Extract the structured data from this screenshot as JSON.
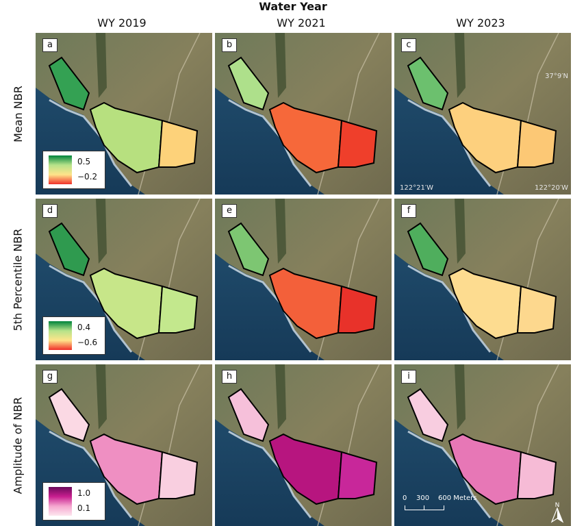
{
  "figure": {
    "title": "Water Year",
    "columns": [
      "WY 2019",
      "WY 2021",
      "WY 2023"
    ],
    "rows": [
      {
        "label": "Mean NBR",
        "legend_high": "0.5",
        "legend_low": "−0.2",
        "ramp": [
          "#00843c",
          "#b6e38a",
          "#ffe48a",
          "#f0302a"
        ]
      },
      {
        "label": "5th Percentile NBR",
        "legend_high": "0.4",
        "legend_low": "−0.6",
        "ramp": [
          "#00843c",
          "#b6e38a",
          "#ffe48a",
          "#f0302a"
        ]
      },
      {
        "label": "Amplitude of NBR",
        "legend_high": "1.0",
        "legend_low": "0.1",
        "ramp": [
          "#6a0a5a",
          "#c81e8f",
          "#f5a6cf",
          "#fde6ee"
        ]
      }
    ],
    "panels": [
      {
        "label": "a",
        "row": 0,
        "col": 0,
        "west_fill": "#34a153",
        "mid_fill": "#b7e07f",
        "east_fill": "#fdd27a"
      },
      {
        "label": "b",
        "row": 0,
        "col": 1,
        "west_fill": "#aee08b",
        "mid_fill": "#f6683a",
        "east_fill": "#ef3f2b"
      },
      {
        "label": "c",
        "row": 0,
        "col": 2,
        "west_fill": "#6cc06e",
        "mid_fill": "#fdd07e",
        "east_fill": "#fcc875"
      },
      {
        "label": "d",
        "row": 1,
        "col": 0,
        "west_fill": "#2f9a4f",
        "mid_fill": "#c7e689",
        "east_fill": "#c3e88d"
      },
      {
        "label": "e",
        "row": 1,
        "col": 1,
        "west_fill": "#7dc672",
        "mid_fill": "#f3603a",
        "east_fill": "#e8322a"
      },
      {
        "label": "f",
        "row": 1,
        "col": 2,
        "west_fill": "#4fae5d",
        "mid_fill": "#fddc90",
        "east_fill": "#fdd88e"
      },
      {
        "label": "g",
        "row": 2,
        "col": 0,
        "west_fill": "#fbd9e4",
        "mid_fill": "#ef8fc2",
        "east_fill": "#f9cfe0"
      },
      {
        "label": "h",
        "row": 2,
        "col": 1,
        "west_fill": "#f6c0da",
        "mid_fill": "#b7157f",
        "east_fill": "#c8279a"
      },
      {
        "label": "i",
        "row": 2,
        "col": 2,
        "west_fill": "#f8cde0",
        "mid_fill": "#e777b6",
        "east_fill": "#f6bbd6"
      }
    ],
    "coordinates": {
      "lat": "37°9′N",
      "lon_west": "122°21′W",
      "lon_east": "122°20′W"
    },
    "scale_bar": {
      "ticks": [
        "0",
        "300",
        "600 Meters"
      ]
    },
    "north_label": "N"
  }
}
